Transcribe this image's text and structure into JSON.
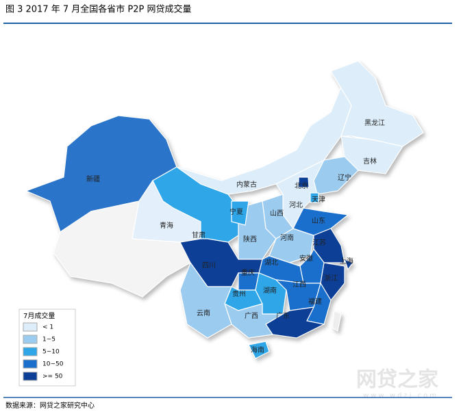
{
  "header": {
    "title": "图 3   2017 年 7 月全国各省市 P2P 网贷成交量"
  },
  "map": {
    "provinces": [
      "新疆",
      "青海",
      "甘肃",
      "内蒙古",
      "黑龙江",
      "吉林",
      "辽宁",
      "北京",
      "天津",
      "河北",
      "山西",
      "宁夏",
      "陕西",
      "河南",
      "山东",
      "江苏",
      "上海",
      "安徽",
      "湖北",
      "四川",
      "重庆",
      "浙江",
      "江西",
      "湖南",
      "贵州",
      "云南",
      "广西",
      "广东",
      "福建",
      "海南"
    ]
  },
  "legend": {
    "title": "7月成交量",
    "items": [
      {
        "label": "< 1",
        "color": "#ddeefa"
      },
      {
        "label": "1~5",
        "color": "#9ccbf0"
      },
      {
        "label": "5~10",
        "color": "#2ea6e8"
      },
      {
        "label": "10~50",
        "color": "#1a6fcc"
      },
      {
        "label": ">= 50",
        "color": "#0d3f96"
      }
    ]
  },
  "footer": {
    "source": "数据来源：网贷之家研究中心",
    "watermark": "网贷之家",
    "watermark_url": "www.wdzj.com"
  }
}
